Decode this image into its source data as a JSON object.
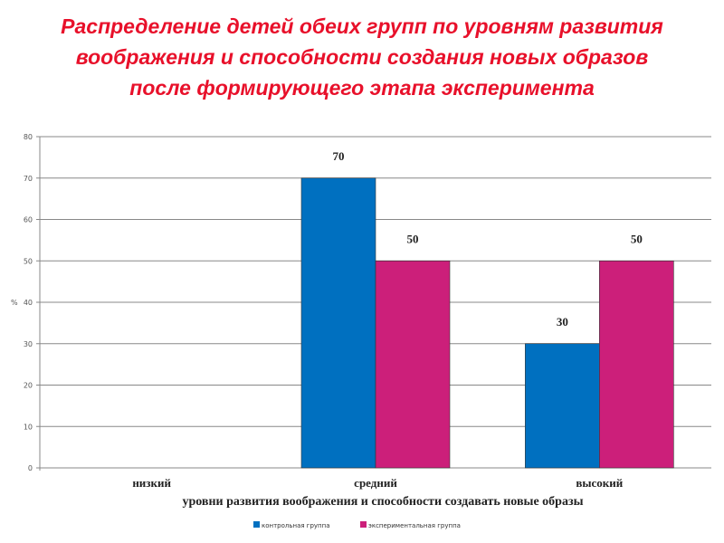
{
  "chart_data": {
    "type": "bar",
    "title": [
      "Распределение детей обеих групп по уровням развития",
      "воображения и способности создания новых образов",
      "после формирующего этапа  эксперимента"
    ],
    "categories": [
      "низкий",
      "средний",
      "высокий"
    ],
    "series": [
      {
        "name": "контрольная группа",
        "values": [
          0,
          70,
          30
        ],
        "color": "#0070c0"
      },
      {
        "name": "экспериментальная группа",
        "values": [
          0,
          50,
          50
        ],
        "color": "#cc1f7a"
      }
    ],
    "xlabel": "уровни развития воображения и способности создавать новые образы",
    "ylabel": "%",
    "ylim": [
      0,
      80
    ],
    "yticks": [
      0,
      10,
      20,
      30,
      40,
      50,
      60,
      70,
      80
    ],
    "grid": true,
    "legend": "bottom",
    "title_color": "#e8102a"
  }
}
